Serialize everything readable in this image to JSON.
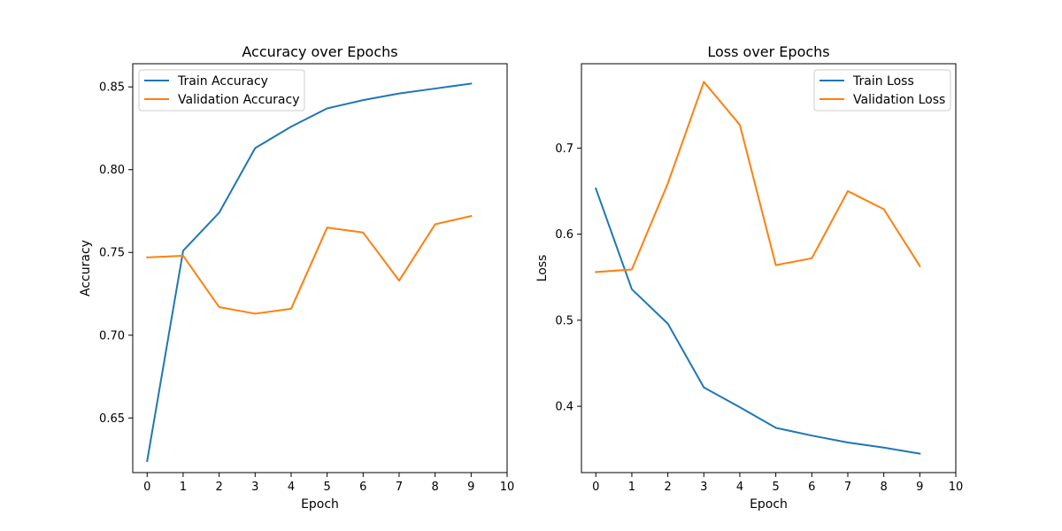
{
  "colors": {
    "train": "#1f77b4",
    "validation": "#ff7f0e"
  },
  "chart_data": [
    {
      "type": "line",
      "title": "Accuracy over Epochs",
      "xlabel": "Epoch",
      "ylabel": "Accuracy",
      "x": [
        0,
        1,
        2,
        3,
        4,
        5,
        6,
        7,
        8,
        9
      ],
      "xlim": [
        -0.4,
        10
      ],
      "ylim": [
        0.617,
        0.864
      ],
      "xticks": [
        "0",
        "1",
        "2",
        "3",
        "4",
        "5",
        "6",
        "7",
        "8",
        "9",
        "10"
      ],
      "yticks": [
        "0.65",
        "0.70",
        "0.75",
        "0.80",
        "0.85"
      ],
      "grid": false,
      "legend_position": "top-left",
      "series": [
        {
          "name": "Train Accuracy",
          "color": "#1f77b4",
          "values": [
            0.624,
            0.751,
            0.774,
            0.813,
            0.826,
            0.837,
            0.842,
            0.846,
            0.849,
            0.852
          ]
        },
        {
          "name": "Validation Accuracy",
          "color": "#ff7f0e",
          "values": [
            0.747,
            0.748,
            0.717,
            0.713,
            0.716,
            0.765,
            0.762,
            0.733,
            0.767,
            0.772
          ]
        }
      ]
    },
    {
      "type": "line",
      "title": "Loss over Epochs",
      "xlabel": "Epoch",
      "ylabel": "Loss",
      "x": [
        0,
        1,
        2,
        3,
        4,
        5,
        6,
        7,
        8,
        9
      ],
      "xlim": [
        -0.4,
        10
      ],
      "ylim": [
        0.323,
        0.798
      ],
      "xticks": [
        "0",
        "1",
        "2",
        "3",
        "4",
        "5",
        "6",
        "7",
        "8",
        "9",
        "10"
      ],
      "yticks": [
        "0.4",
        "0.5",
        "0.6",
        "0.7"
      ],
      "grid": false,
      "legend_position": "top-right",
      "series": [
        {
          "name": "Train Loss",
          "color": "#1f77b4",
          "values": [
            0.653,
            0.536,
            0.496,
            0.422,
            0.399,
            0.375,
            0.366,
            0.358,
            0.352,
            0.345
          ]
        },
        {
          "name": "Validation Loss",
          "color": "#ff7f0e",
          "values": [
            0.556,
            0.559,
            0.659,
            0.777,
            0.727,
            0.564,
            0.572,
            0.65,
            0.629,
            0.563
          ]
        }
      ]
    }
  ]
}
